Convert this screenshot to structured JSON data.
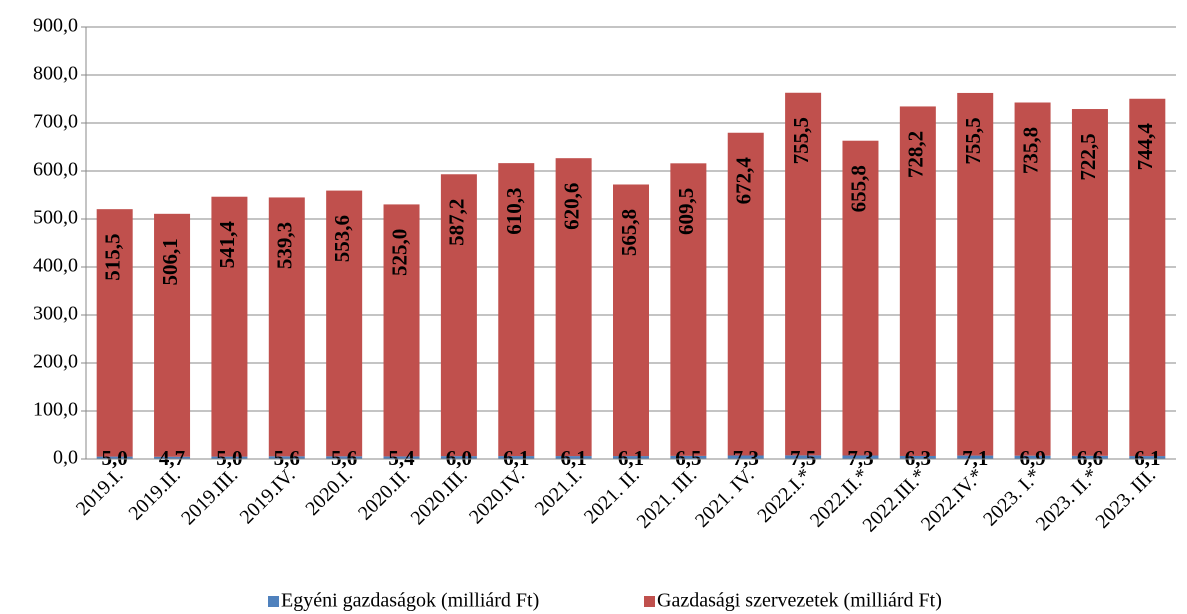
{
  "chart_data": {
    "type": "stacked_bar",
    "categories": [
      "2019.I.",
      "2019.II.",
      "2019.III.",
      "2019.IV.",
      "2020.I.",
      "2020.II.",
      "2020.III.",
      "2020.IV.",
      "2021.I.",
      "2021. II.",
      "2021. III.",
      "2021. IV.",
      "2022.I.*",
      "2022.II.*",
      "2022.III.*",
      "2022.IV.*",
      "2023. I.*",
      "2023. II.*",
      "2023. III."
    ],
    "series": [
      {
        "name": "Egyéni gazdaságok (milliárd Ft)",
        "color": "#4f81bd",
        "values": [
          5.0,
          4.7,
          5.0,
          5.6,
          5.6,
          5.4,
          6.0,
          6.1,
          6.1,
          6.1,
          6.5,
          7.3,
          7.5,
          7.3,
          6.3,
          7.1,
          6.9,
          6.6,
          6.1
        ],
        "value_labels": [
          "5,0",
          "4,7",
          "5,0",
          "5,6",
          "5,6",
          "5,4",
          "6,0",
          "6,1",
          "6,1",
          "6,1",
          "6,5",
          "7,3",
          "7,5",
          "7,3",
          "6,3",
          "7,1",
          "6,9",
          "6,6",
          "6,1"
        ]
      },
      {
        "name": "Gazdasági szervezetek (milliárd Ft)",
        "color": "#c0504d",
        "values": [
          515.5,
          506.1,
          541.4,
          539.3,
          553.6,
          525.0,
          587.2,
          610.3,
          620.6,
          565.8,
          609.5,
          672.4,
          755.5,
          655.8,
          728.2,
          755.5,
          735.8,
          722.5,
          744.4
        ],
        "value_labels": [
          "515,5",
          "506,1",
          "541,4",
          "539,3",
          "553,6",
          "525,0",
          "587,2",
          "610,3",
          "620,6",
          "565,8",
          "609,5",
          "672,4",
          "755,5",
          "655,8",
          "728,2",
          "755,5",
          "735,8",
          "722,5",
          "744,4"
        ]
      }
    ],
    "ylim": [
      0,
      900
    ],
    "yticks": [
      {
        "value": 0,
        "label": "0,0"
      },
      {
        "value": 100,
        "label": "100,0"
      },
      {
        "value": 200,
        "label": "200,0"
      },
      {
        "value": 300,
        "label": "300,0"
      },
      {
        "value": 400,
        "label": "400,0"
      },
      {
        "value": 500,
        "label": "500,0"
      },
      {
        "value": 600,
        "label": "600,0"
      },
      {
        "value": 700,
        "label": "700,0"
      },
      {
        "value": 800,
        "label": "800,0"
      },
      {
        "value": 900,
        "label": "900,0"
      }
    ],
    "grid": true,
    "legend": "bottom"
  }
}
